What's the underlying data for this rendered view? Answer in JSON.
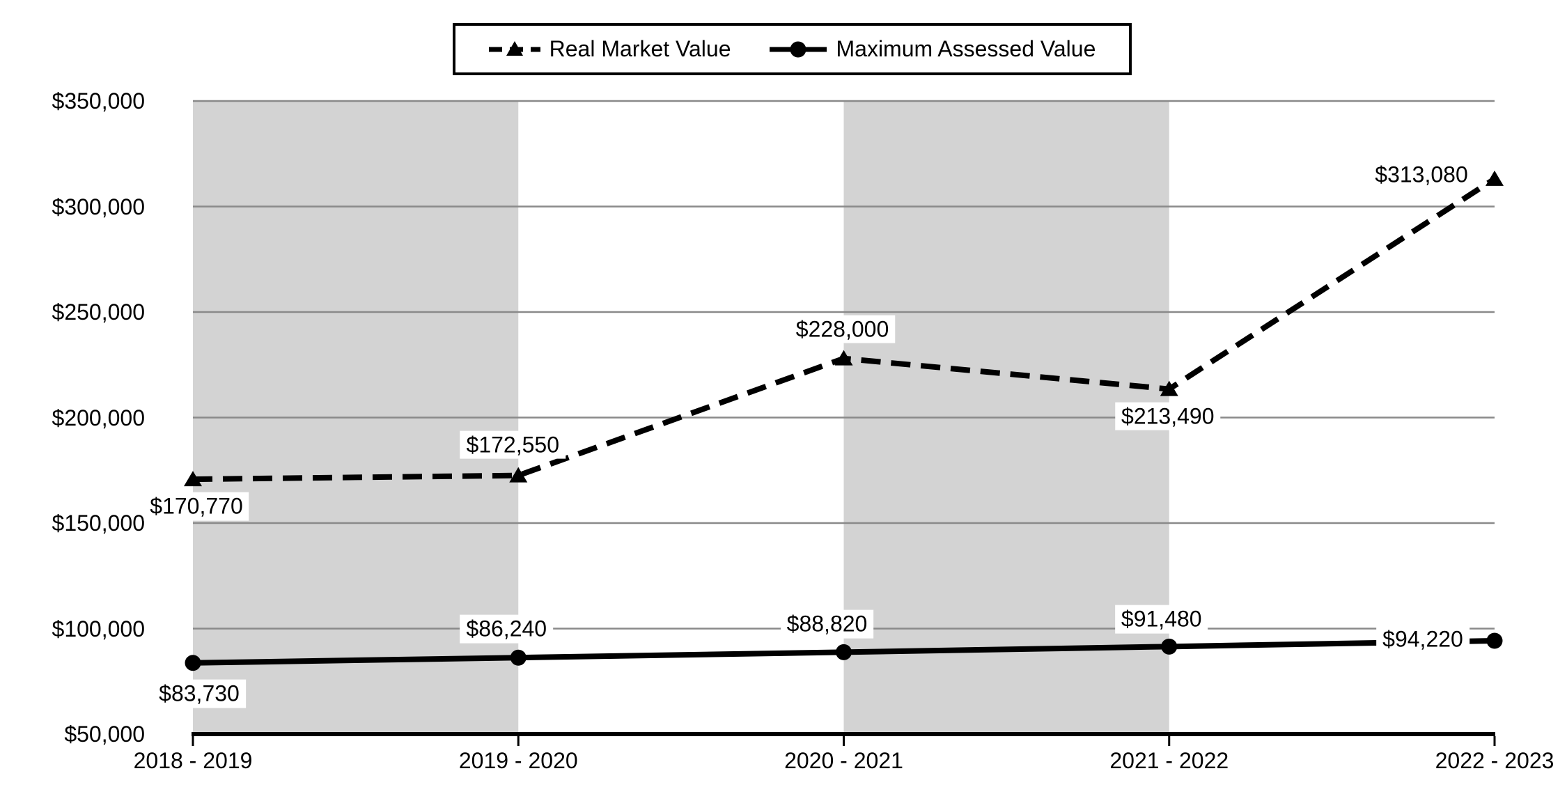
{
  "legend": {
    "position": "top",
    "items": [
      {
        "label": "Real Market Value"
      },
      {
        "label": "Maximum Assessed Value"
      }
    ]
  },
  "chart_data": {
    "type": "line",
    "categories": [
      "2018 - 2019",
      "2019 - 2020",
      "2020 - 2021",
      "2021 - 2022",
      "2022 - 2023"
    ],
    "series": [
      {
        "name": "Real Market Value",
        "line_style": "dashed",
        "marker": "triangle",
        "color": "#000000",
        "values": [
          170770,
          172550,
          228000,
          213490,
          313080
        ],
        "data_labels": [
          "$170,770",
          "$172,550",
          "$228,000",
          "$213,490",
          "$313,080"
        ],
        "label_offsets": [
          [
            5,
            39
          ],
          [
            -8,
            -44
          ],
          [
            -2,
            -42
          ],
          [
            -2,
            39
          ],
          [
            -105,
            -6
          ]
        ]
      },
      {
        "name": "Maximum Assessed Value",
        "line_style": "solid",
        "marker": "circle",
        "color": "#000000",
        "values": [
          83730,
          86240,
          88820,
          91480,
          94220
        ],
        "data_labels": [
          "$83,730",
          "$86,240",
          "$88,820",
          "$91,480",
          "$94,220"
        ],
        "label_offsets": [
          [
            9,
            44
          ],
          [
            -17,
            -41
          ],
          [
            -24,
            -40
          ],
          [
            -11,
            -39
          ],
          [
            -103,
            -2
          ]
        ]
      }
    ],
    "ylim": [
      50000,
      350000
    ],
    "ytick_step": 50000,
    "ytick_labels": [
      "$50,000",
      "$100,000",
      "$150,000",
      "$200,000",
      "$250,000",
      "$300,000",
      "$350,000"
    ],
    "xlabel": "",
    "ylabel": "",
    "title": "",
    "grid": true,
    "legend_position": "top-center",
    "plot_bands": [
      {
        "from_category": 0,
        "to_category": 1
      },
      {
        "from_category": 2,
        "to_category": 3
      }
    ],
    "colors": {
      "series": "#000000",
      "band": "#d3d3d3",
      "gridline": "#8a8a8a",
      "axis": "#000000",
      "label_background": "#ffffff",
      "background": "#ffffff"
    }
  }
}
